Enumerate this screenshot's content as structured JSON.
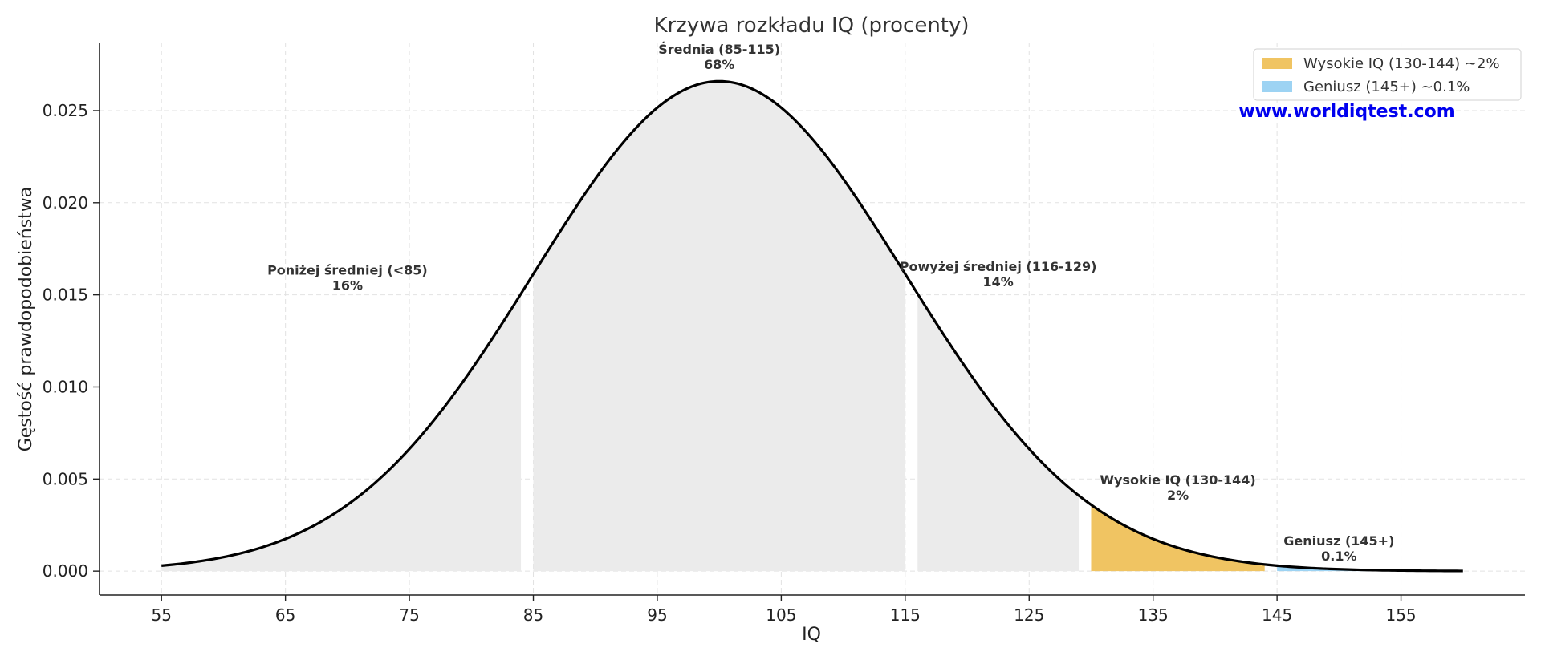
{
  "chart_data": {
    "type": "area",
    "title": "Krzywa rozkładu IQ (procenty)",
    "xlabel": "IQ",
    "ylabel": "Gęstość prawdopodobieństwa",
    "xlim": [
      50,
      165
    ],
    "ylim": [
      -0.0013,
      0.0287
    ],
    "x_ticks": [
      55,
      65,
      75,
      85,
      95,
      105,
      115,
      125,
      135,
      145,
      155
    ],
    "y_ticks": [
      0.0,
      0.005,
      0.01,
      0.015,
      0.02,
      0.025
    ],
    "y_tick_labels": [
      "0.000",
      "0.005",
      "0.010",
      "0.015",
      "0.020",
      "0.025"
    ],
    "grid": true,
    "curve": {
      "distribution": "normal",
      "mean": 100,
      "sd": 15,
      "x_range": [
        55,
        160
      ],
      "color": "#000000"
    },
    "regions": [
      {
        "label": "Poniżej średniej (<85)",
        "percent": "16%",
        "x_range": [
          55,
          84
        ],
        "color": "#ebebeb",
        "label_at": [
          70,
          0.0161
        ]
      },
      {
        "label": "Średnia (85-115)",
        "percent": "68%",
        "x_range": [
          85,
          115
        ],
        "color": "#ebebeb",
        "label_at": [
          100,
          0.0281
        ]
      },
      {
        "label": "Powyżej średniej (116-129)",
        "percent": "14%",
        "x_range": [
          116,
          129
        ],
        "color": "#ebebeb",
        "label_at": [
          122.5,
          0.0163
        ]
      },
      {
        "label": "Wysokie IQ (130-144)",
        "percent": "2%",
        "x_range": [
          130,
          144
        ],
        "color": "#f0c462",
        "label_at": [
          137,
          0.0047
        ]
      },
      {
        "label": "Geniusz (145+)",
        "percent": "0.1%",
        "x_range": [
          145,
          160
        ],
        "color": "#9dd3f3",
        "label_at": [
          150,
          0.0014
        ]
      }
    ],
    "legend": {
      "placement": "top-right",
      "entries": [
        {
          "label": "Wysokie IQ (130-144) ~2%",
          "color": "#f0c462"
        },
        {
          "label": "Geniusz (145+) ~0.1%",
          "color": "#9dd3f3"
        }
      ]
    },
    "watermark": "www.worldiqtest.com"
  }
}
